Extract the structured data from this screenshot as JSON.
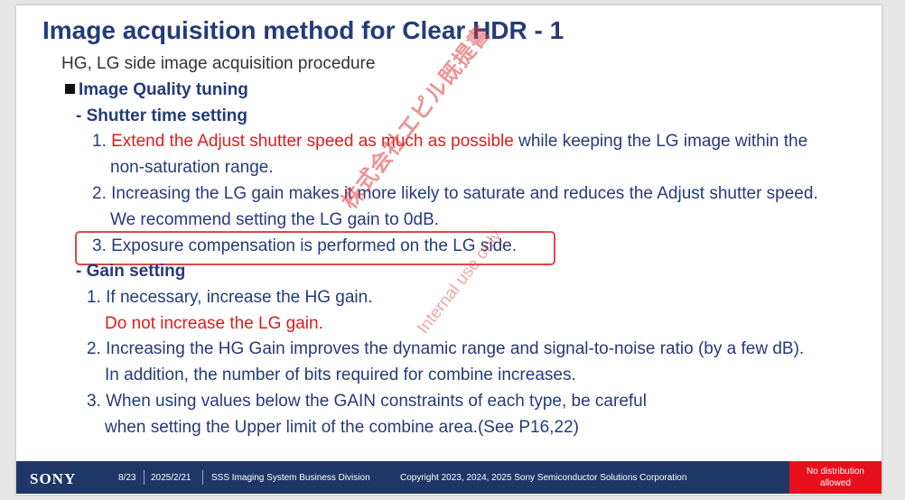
{
  "slide": {
    "title": "Image acquisition method for Clear HDR - 1",
    "subtitle": "HG, LG side image acquisition procedure",
    "section": "Image Quality tuning",
    "shutter": {
      "heading": "- Shutter time setting",
      "item1_num": "1. ",
      "item1_red": "Extend the Adjust shutter speed as much as possible",
      "item1_rest": " while keeping the LG image within the",
      "item1_cont": "non-saturation range.",
      "item2": "2. Increasing the LG gain makes it more likely to saturate and reduces the Adjust shutter speed.",
      "item2_cont": "We recommend setting the LG gain to 0dB.",
      "item3": "3. Exposure compensation is performed on the LG side."
    },
    "gain": {
      "heading": "- Gain setting",
      "item1": "1. If necessary, increase the HG gain.",
      "item1_red": "Do not increase the LG gain.",
      "item2": "2. Increasing the HG Gain improves the dynamic range and signal-to-noise ratio (by a few dB).",
      "item2_cont": "In addition, the number of bits required for combine increases.",
      "item3": "3. When using values below the GAIN constraints of each type, be careful",
      "item3_cont": "when setting the Upper  limit of the combine area.(See P16,22)"
    },
    "watermark": {
      "jp": "株式会社エピル既提書",
      "en": "Internal use only"
    }
  },
  "footer": {
    "brand": "SONY",
    "page": "8/23",
    "date": "2025/2/21",
    "division": "SSS  Imaging System Business Division",
    "copyright": "Copyright 2023, 2024, 2025 Sony Semiconductor Solutions Corporation",
    "distribution_line1": "No distribution",
    "distribution_line2": "allowed"
  },
  "colors": {
    "title": "#243b7a",
    "emphasis": "#e01b1b",
    "footer_bg": "#1e3766",
    "badge_bg": "#e5101a"
  }
}
